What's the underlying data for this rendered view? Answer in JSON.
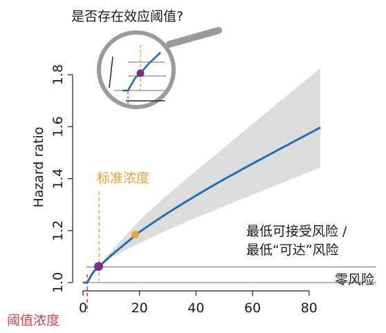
{
  "chart_data": {
    "type": "line",
    "title": "",
    "question": "是否存在效应阈值?",
    "xlabel": "零风险",
    "ylabel": "Hazard ratio",
    "xlim": [
      0,
      85
    ],
    "ylim": [
      1.0,
      1.85
    ],
    "x_ticks": [
      0,
      20,
      40,
      60,
      80
    ],
    "x_tick_labels": [
      "0",
      "20",
      "40",
      "60",
      "80"
    ],
    "y_ticks": [
      1.0,
      1.2,
      1.4,
      1.6,
      1.8
    ],
    "y_tick_labels": [
      "1.0",
      "1.2",
      "1.4",
      "1.6",
      "1.8"
    ],
    "series": [
      {
        "x": [
          0,
          1,
          1.5,
          2,
          3,
          4,
          5,
          6,
          8,
          10,
          15,
          20,
          25,
          30,
          35,
          40,
          45,
          50,
          55,
          60,
          65,
          70,
          75,
          80,
          84
        ],
        "y": [
          1.0,
          1.0,
          1.0,
          1.01,
          1.03,
          1.045,
          1.055,
          1.065,
          1.085,
          1.105,
          1.15,
          1.195,
          1.232,
          1.268,
          1.302,
          1.335,
          1.367,
          1.398,
          1.428,
          1.458,
          1.487,
          1.516,
          1.545,
          1.574,
          1.597
        ],
        "ci_lower": [
          1.0,
          1.0,
          1.0,
          1.01,
          1.03,
          1.045,
          1.055,
          1.065,
          1.08,
          1.095,
          1.125,
          1.152,
          1.178,
          1.202,
          1.226,
          1.25,
          1.272,
          1.294,
          1.316,
          1.338,
          1.36,
          1.382,
          1.404,
          1.426,
          1.443
        ],
        "ci_upper": [
          1.0,
          1.0,
          1.0,
          1.01,
          1.03,
          1.045,
          1.055,
          1.068,
          1.095,
          1.12,
          1.18,
          1.24,
          1.29,
          1.338,
          1.385,
          1.43,
          1.475,
          1.52,
          1.565,
          1.61,
          1.655,
          1.7,
          1.745,
          1.79,
          1.825
        ]
      }
    ],
    "reference_line": {
      "y": 1.06,
      "color": "#888888"
    },
    "baseline": {
      "y": 1.0,
      "color": "#888888"
    },
    "threshold": {
      "x": 1.5,
      "label": "阈值浓度",
      "color": "#e0404a"
    },
    "standard": {
      "x": 5,
      "label": "标准浓度",
      "color": "#f0a030"
    },
    "points": [
      {
        "x": 5.5,
        "y": 1.062,
        "color": "#7b2d8b",
        "name": "min-risk-point"
      },
      {
        "x": 18.5,
        "y": 1.185,
        "color": "#f0a030",
        "name": "standard-point"
      }
    ],
    "annotation_lines": [
      "最低可接受风险 /",
      "最低“可达”风险"
    ],
    "colors": {
      "line": "#1f6fb0",
      "ci_band": "#dcdcdc",
      "axis": "#1a1a1a",
      "magnifier": "#9a9a9a",
      "purple": "#7b2d8b",
      "orange": "#f0a030",
      "red": "#e0404a"
    },
    "grid": false,
    "inset": {
      "type": "magnifier",
      "shows": "zoom of threshold region"
    }
  }
}
